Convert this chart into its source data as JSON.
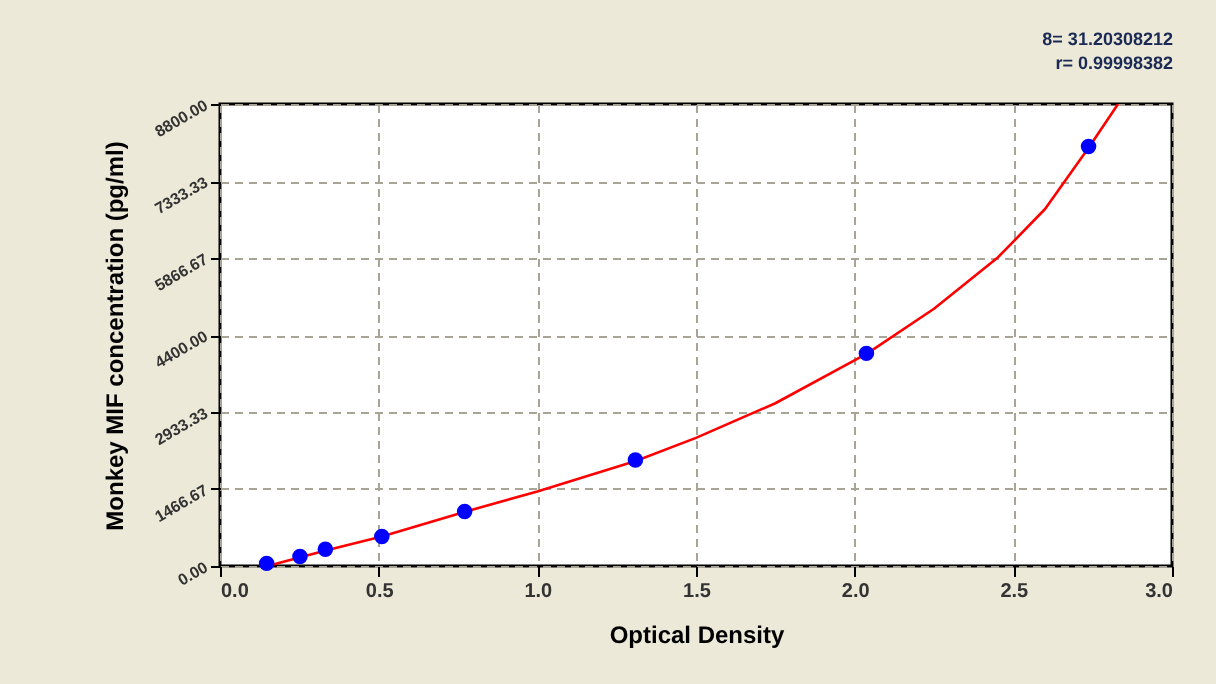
{
  "chart_data": {
    "type": "scatter",
    "xlabel": "Optical Density",
    "ylabel": "Monkey MIF concentration (pg/ml)",
    "annotations": [
      "8= 31.20308212",
      "r= 0.99998382"
    ],
    "xlim": [
      0,
      3
    ],
    "xticks": [
      {
        "value": 0,
        "label": "0.0"
      },
      {
        "value": 0.5,
        "label": "0.5"
      },
      {
        "value": 1,
        "label": "1.0"
      },
      {
        "value": 1.5,
        "label": "1.5"
      },
      {
        "value": 2,
        "label": "2.0"
      },
      {
        "value": 2.5,
        "label": "2.5"
      },
      {
        "value": 3,
        "label": "3.0"
      }
    ],
    "ylim": [
      0,
      8800
    ],
    "yticks": [
      {
        "value": 0,
        "label": "0.00"
      },
      {
        "value": 1466.67,
        "label": "1466.67"
      },
      {
        "value": 2933.33,
        "label": "2933.33"
      },
      {
        "value": 4400,
        "label": "4400.00"
      },
      {
        "value": 5866.67,
        "label": "5866.67"
      },
      {
        "value": 7333.33,
        "label": "7333.33"
      },
      {
        "value": 8800,
        "label": "8800.00"
      }
    ],
    "grid": true,
    "series": [
      {
        "type": "line",
        "color": "#ff0000",
        "marker": "none",
        "x": [
          0.15,
          0.33,
          0.51,
          0.77,
          1.0,
          1.31,
          1.5,
          1.75,
          2.04,
          2.25,
          2.45,
          2.6,
          2.74,
          2.83
        ],
        "values": [
          0,
          290,
          560,
          1030,
          1420,
          2000,
          2440,
          3100,
          4050,
          4900,
          5870,
          6800,
          7990,
          8800
        ]
      },
      {
        "color": "#0000ff",
        "marker": "circle",
        "x": [
          0.147,
          0.252,
          0.332,
          0.51,
          0.771,
          1.309,
          2.037,
          2.737
        ],
        "values": [
          50,
          180,
          320,
          560,
          1040,
          2020,
          4050,
          7990
        ]
      }
    ]
  }
}
